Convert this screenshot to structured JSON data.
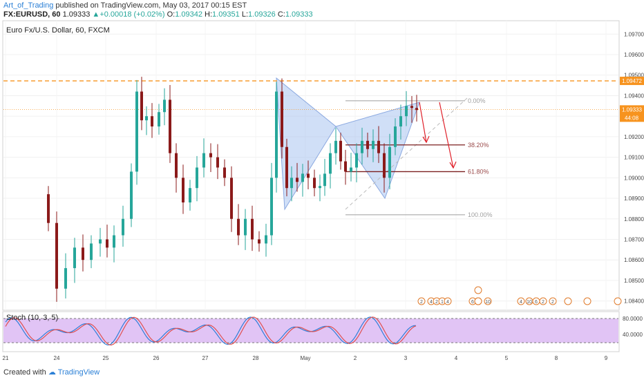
{
  "header": {
    "author": "Art_of_Trading",
    "published": " published on TradingView.com, May 03, 2017 00:15 EST",
    "symbol": "FX:EURUSD, 60",
    "last": "1.09333",
    "change": "+0.00018 (+0.02%)",
    "o_label": "O:",
    "o": "1.09342",
    "h_label": "H:",
    "h": "1.09351",
    "l_label": "L:",
    "l": "1.09326",
    "c_label": "C:",
    "c": "1.09333"
  },
  "chart_title": "Euro Fx/U.S. Dollar, 60, FXCM",
  "stoch_title": "Stoch (10, 3, 5)",
  "footer": {
    "created": "Created with",
    "brand": "TradingView"
  },
  "colors": {
    "bull": "#26a69a",
    "bear": "#8b1a1a",
    "fib": "#9e9e9e",
    "fibRed": "#c0392b",
    "orange": "#f7931e",
    "pattern": "#aac4f0",
    "stochBg": "#e1c4f5",
    "stochK": "#2f7ed8",
    "stochD": "#e05050",
    "arrow": "#e0202a"
  },
  "chart_data": {
    "type": "candlestick",
    "ylim": [
      1.08355,
      1.09765
    ],
    "y_ticks": [
      "1.09700",
      "1.09600",
      "1.09500",
      "1.09400",
      "1.09300",
      "1.09200",
      "1.09100",
      "1.09000",
      "1.08900",
      "1.08800",
      "1.08700",
      "1.08600",
      "1.08500",
      "1.08400"
    ],
    "x_ticks": [
      "21",
      "24",
      "25",
      "26",
      "27",
      "28",
      "May",
      "2",
      "3",
      "4",
      "5",
      "8",
      "9"
    ],
    "price_labels": {
      "resistance": "1.09472",
      "last": "1.09333",
      "countdown": "44:08"
    },
    "resistance_level": 1.09472,
    "last_price": 1.09333,
    "fib_levels": [
      {
        "label": "0.00%",
        "price": 1.09375
      },
      {
        "label": "38.20%",
        "price": 1.0916
      },
      {
        "label": "61.80%",
        "price": 1.0903
      },
      {
        "label": "100.00%",
        "price": 1.0882
      }
    ],
    "stoch_levels": {
      "upper": "80.0000",
      "lower": "40.0000"
    },
    "event_labels": [
      "2",
      "4",
      "2",
      "1",
      "4",
      "6",
      "2",
      "10",
      "4",
      "10",
      "6",
      "2",
      "2"
    ]
  }
}
